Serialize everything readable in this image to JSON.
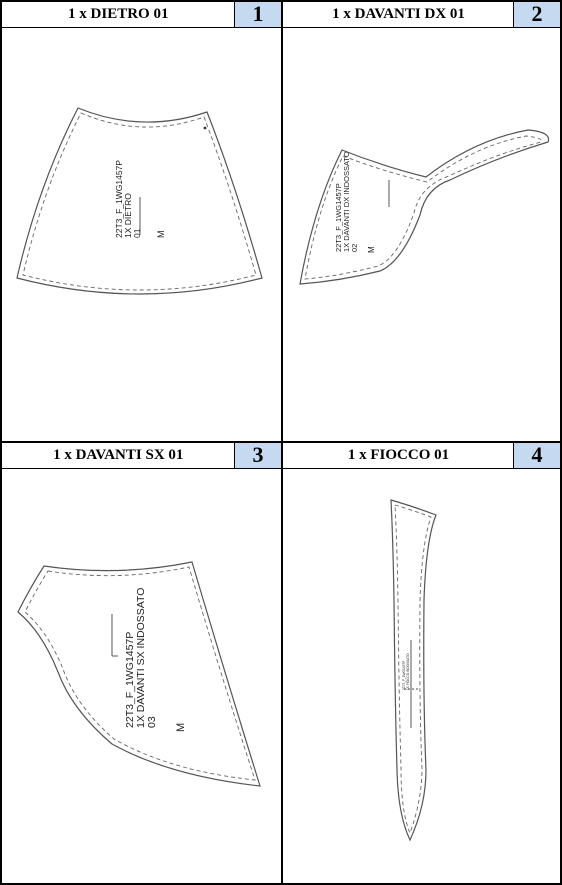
{
  "cells": [
    {
      "title": "1 x DIETRO 01",
      "number": "1",
      "label_lines": [
        "22T3_F_1WG1457P",
        "1X DIETRO",
        "01"
      ],
      "size": "M"
    },
    {
      "title": "1 x DAVANTI DX 01",
      "number": "2",
      "label_lines": [
        "22T3_F_1WG1457P",
        "1X DAVANTI DX INDOSSATO",
        "02"
      ],
      "size": "M"
    },
    {
      "title": "1 x DAVANTI SX 01",
      "number": "3",
      "label_lines": [
        "22T3_F_1WG1457P",
        "1X DAVANTI SX INDOSSATO",
        "03"
      ],
      "size": "M"
    },
    {
      "title": "1 x FIOCCO 01",
      "number": "4",
      "label_lines": [
        "22T3_F_1WG1457P",
        "1X FIOCCO INDOSSATO"
      ],
      "size": ""
    }
  ]
}
